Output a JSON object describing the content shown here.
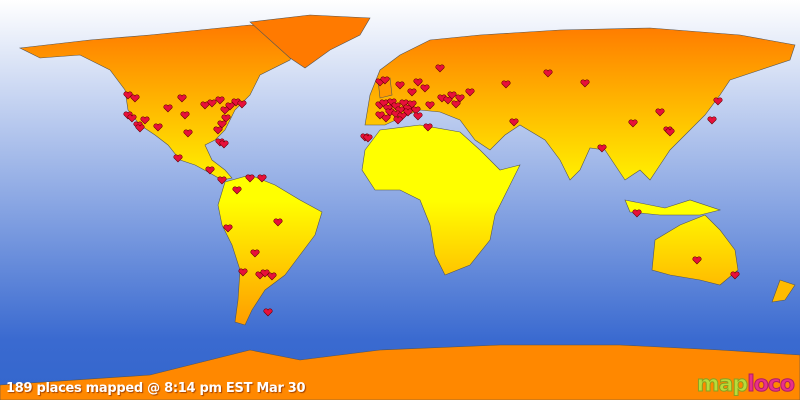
{
  "status_text": "189 places mapped @ 8:14 pm EST Mar 30",
  "logo": {
    "part1": "map",
    "part2": "loco"
  },
  "colors": {
    "ocean_top": "#ffffff",
    "ocean_bottom": "#3366cc",
    "land_top": "#ff7700",
    "land_bottom": "#ffff00",
    "marker": "#e8103a"
  },
  "marker_icon": "heart-icon"
}
